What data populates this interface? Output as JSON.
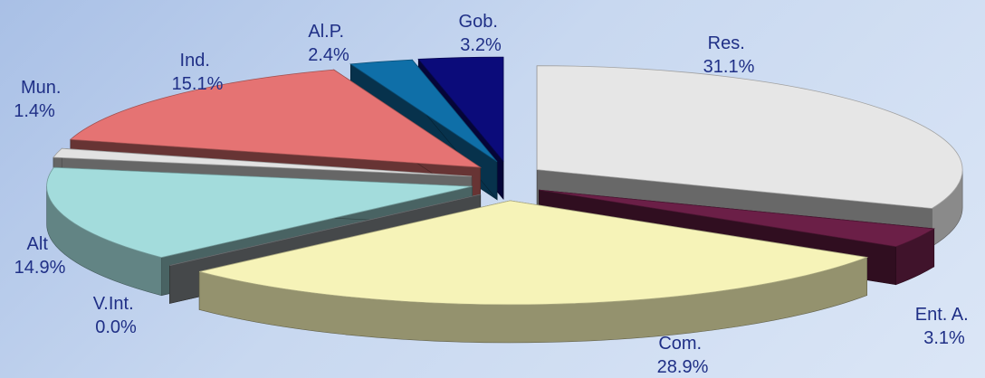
{
  "chart_data": {
    "type": "pie",
    "title": "",
    "exploded": true,
    "three_d": true,
    "slices": [
      {
        "label": "Res.",
        "value": 31.1,
        "value_text": "31.1%",
        "color": "#e6e6e6"
      },
      {
        "label": "Ent. A.",
        "value": 3.1,
        "value_text": "3.1%",
        "color": "#6b1f47"
      },
      {
        "label": "Com.",
        "value": 28.9,
        "value_text": "28.9%",
        "color": "#f6f3b8"
      },
      {
        "label": "V.Int.",
        "value": 0.0,
        "value_text": "0.0%",
        "color": "#9aa0a4"
      },
      {
        "label": "Alt",
        "value": 14.9,
        "value_text": "14.9%",
        "color": "#a3dcdc"
      },
      {
        "label": "Mun.",
        "value": 1.4,
        "value_text": "1.4%",
        "color": "#e2e2e2"
      },
      {
        "label": "Ind.",
        "value": 15.1,
        "value_text": "15.1%",
        "color": "#e57373"
      },
      {
        "label": "Al.P.",
        "value": 2.4,
        "value_text": "2.4%",
        "color": "#0f6fa8"
      },
      {
        "label": "Gob.",
        "value": 3.2,
        "value_text": "3.2%",
        "color": "#0b0b7a"
      }
    ]
  }
}
